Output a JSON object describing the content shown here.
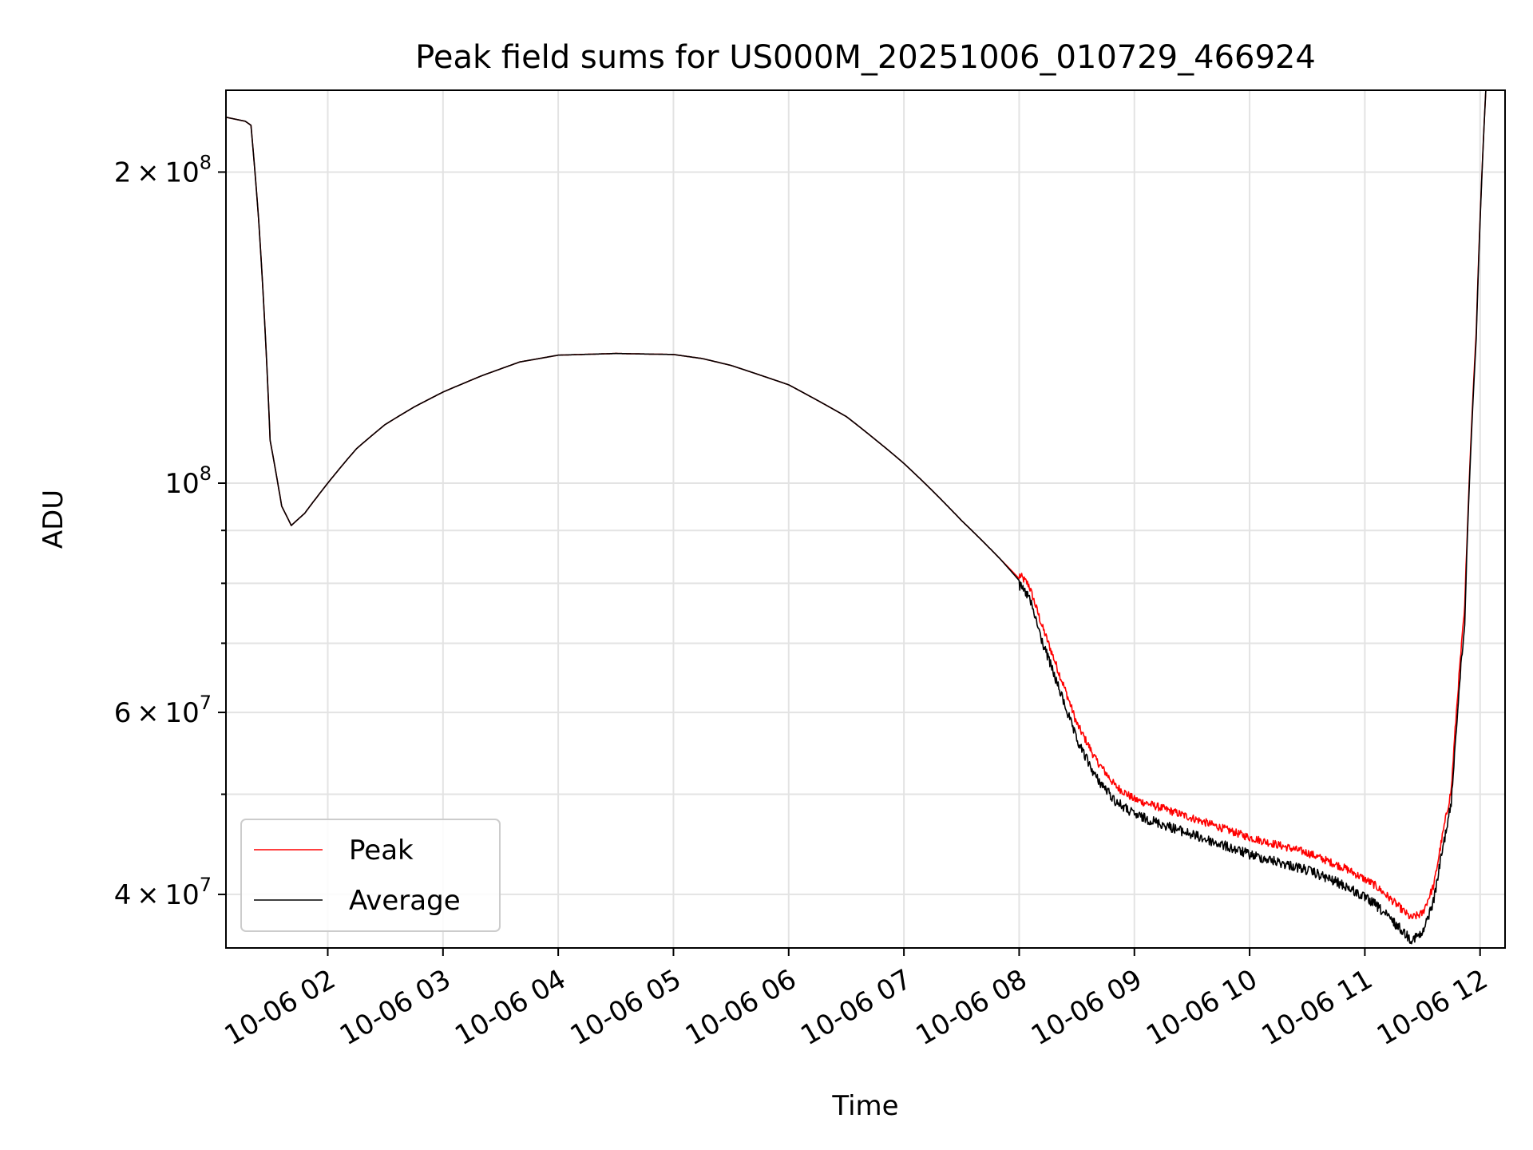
{
  "chart_data": {
    "type": "line",
    "title": "Peak field sums for US000M_20251006_010729_466924",
    "xlabel": "Time",
    "ylabel": "ADU",
    "yscale": "log",
    "ylim": [
      35500000,
      240000000
    ],
    "xlim": [
      "2025-10-06T01:07",
      "2025-10-06T12:13"
    ],
    "grid": true,
    "legend_position": "lower-left",
    "x_ticks": [
      "10-06 02",
      "10-06 03",
      "10-06 04",
      "10-06 05",
      "10-06 06",
      "10-06 07",
      "10-06 08",
      "10-06 09",
      "10-06 10",
      "10-06 11",
      "10-06 12"
    ],
    "y_ticks": [
      {
        "value": 200000000,
        "mantissa": "2",
        "exponent": "8"
      },
      {
        "value": 100000000,
        "mantissa": "",
        "exponent": "8"
      },
      {
        "value": 60000000,
        "mantissa": "6",
        "exponent": "7"
      },
      {
        "value": 40000000,
        "mantissa": "4",
        "exponent": "7"
      }
    ],
    "series": [
      {
        "name": "Peak",
        "color": "#ff0000",
        "noise_after": "2025-10-06T08:00",
        "x": [
          "2025-10-06T01:07",
          "2025-10-06T01:17",
          "2025-10-06T01:20",
          "2025-10-06T01:24",
          "2025-10-06T01:30",
          "2025-10-06T01:36",
          "2025-10-06T01:41",
          "2025-10-06T01:48",
          "2025-10-06T02:00",
          "2025-10-06T02:15",
          "2025-10-06T02:30",
          "2025-10-06T02:45",
          "2025-10-06T03:00",
          "2025-10-06T03:20",
          "2025-10-06T03:40",
          "2025-10-06T04:00",
          "2025-10-06T04:30",
          "2025-10-06T05:00",
          "2025-10-06T05:15",
          "2025-10-06T05:30",
          "2025-10-06T06:00",
          "2025-10-06T06:30",
          "2025-10-06T07:00",
          "2025-10-06T07:30",
          "2025-10-06T07:50",
          "2025-10-06T08:05",
          "2025-10-06T08:12",
          "2025-10-06T08:20",
          "2025-10-06T08:30",
          "2025-10-06T08:40",
          "2025-10-06T08:50",
          "2025-10-06T09:00",
          "2025-10-06T09:30",
          "2025-10-06T10:00",
          "2025-10-06T10:30",
          "2025-10-06T10:50",
          "2025-10-06T11:05",
          "2025-10-06T11:15",
          "2025-10-06T11:24",
          "2025-10-06T11:30",
          "2025-10-06T11:36",
          "2025-10-06T11:45",
          "2025-10-06T11:52",
          "2025-10-06T11:58",
          "2025-10-06T12:03"
        ],
        "y": [
          226000000,
          224000000,
          222000000,
          180000000,
          110000000,
          95000000,
          91000000,
          93500000,
          100000000,
          108000000,
          114000000,
          118500000,
          122500000,
          127000000,
          131000000,
          133000000,
          133500000,
          133200000,
          132000000,
          130000000,
          124500000,
          116000000,
          104500000,
          92000000,
          84500000,
          79000000,
          72000000,
          65500000,
          58000000,
          53500000,
          50500000,
          49000000,
          47000000,
          45000000,
          43500000,
          42000000,
          40500000,
          39000000,
          37600000,
          38000000,
          40500000,
          50000000,
          75000000,
          140000000,
          240000000
        ]
      },
      {
        "name": "Average",
        "color": "#000000",
        "noise_after": "2025-10-06T08:00",
        "x": [
          "2025-10-06T01:07",
          "2025-10-06T01:17",
          "2025-10-06T01:20",
          "2025-10-06T01:24",
          "2025-10-06T01:30",
          "2025-10-06T01:36",
          "2025-10-06T01:41",
          "2025-10-06T01:48",
          "2025-10-06T02:00",
          "2025-10-06T02:15",
          "2025-10-06T02:30",
          "2025-10-06T02:45",
          "2025-10-06T03:00",
          "2025-10-06T03:20",
          "2025-10-06T03:40",
          "2025-10-06T04:00",
          "2025-10-06T04:30",
          "2025-10-06T05:00",
          "2025-10-06T05:15",
          "2025-10-06T05:30",
          "2025-10-06T06:00",
          "2025-10-06T06:30",
          "2025-10-06T07:00",
          "2025-10-06T07:30",
          "2025-10-06T07:50",
          "2025-10-06T08:05",
          "2025-10-06T08:12",
          "2025-10-06T08:20",
          "2025-10-06T08:30",
          "2025-10-06T08:40",
          "2025-10-06T08:50",
          "2025-10-06T09:00",
          "2025-10-06T09:30",
          "2025-10-06T10:00",
          "2025-10-06T10:30",
          "2025-10-06T10:50",
          "2025-10-06T11:05",
          "2025-10-06T11:15",
          "2025-10-06T11:24",
          "2025-10-06T11:30",
          "2025-10-06T11:36",
          "2025-10-06T11:45",
          "2025-10-06T11:52",
          "2025-10-06T11:58",
          "2025-10-06T12:03"
        ],
        "y": [
          226000000,
          224000000,
          222000000,
          180000000,
          110000000,
          95000000,
          91000000,
          93500000,
          100000000,
          108000000,
          114000000,
          118500000,
          122500000,
          127000000,
          131000000,
          133000000,
          133500000,
          133200000,
          132000000,
          130000000,
          124500000,
          116000000,
          104500000,
          92000000,
          84500000,
          78500000,
          71000000,
          64500000,
          57000000,
          52500000,
          49800000,
          48300000,
          46200000,
          44200000,
          42700000,
          41200000,
          39600000,
          38000000,
          36600000,
          37000000,
          40000000,
          49500000,
          74000000,
          138000000,
          240000000
        ]
      }
    ]
  }
}
